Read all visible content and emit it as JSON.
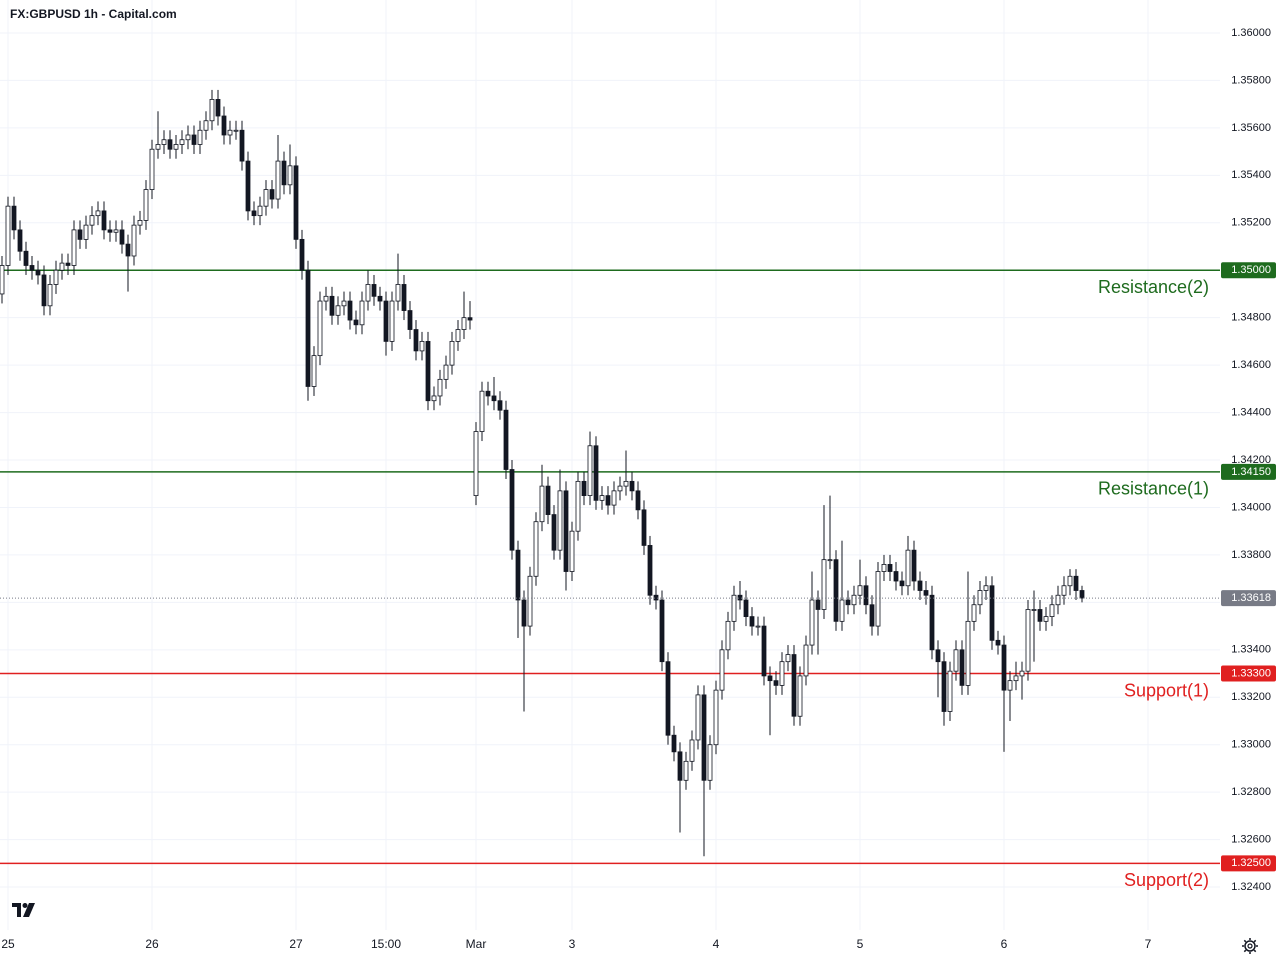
{
  "chart_data": {
    "type": "candlestick",
    "title": "FX:GBPUSD 1h - Capital.com",
    "up_color": "#ffffff",
    "down_color": "#131722",
    "outline_color": "#131722",
    "xlim": [
      -0.333,
      203
    ],
    "ylim": [
      1.32219,
      1.36139
    ],
    "xticks": [
      {
        "value": 1,
        "label": "25"
      },
      {
        "value": 25,
        "label": "26"
      },
      {
        "value": 49,
        "label": "27"
      },
      {
        "value": 64,
        "label": "15:00"
      },
      {
        "value": 79,
        "label": "Mar"
      },
      {
        "value": 95,
        "label": "3"
      },
      {
        "value": 119,
        "label": "4"
      },
      {
        "value": 143,
        "label": "5"
      },
      {
        "value": 167,
        "label": "6"
      },
      {
        "value": 191,
        "label": "7"
      }
    ],
    "yticks": [
      {
        "value": 1.36,
        "label": "1.36000"
      },
      {
        "value": 1.358,
        "label": "1.35800"
      },
      {
        "value": 1.356,
        "label": "1.35600"
      },
      {
        "value": 1.354,
        "label": "1.35400"
      },
      {
        "value": 1.352,
        "label": "1.35200"
      },
      {
        "value": 1.35,
        "label": "1.35000"
      },
      {
        "value": 1.348,
        "label": "1.34800"
      },
      {
        "value": 1.346,
        "label": "1.34600"
      },
      {
        "value": 1.344,
        "label": "1.34400"
      },
      {
        "value": 1.342,
        "label": "1.34200"
      },
      {
        "value": 1.34,
        "label": "1.34000"
      },
      {
        "value": 1.338,
        "label": "1.33800"
      },
      {
        "value": 1.336,
        "label": "1.33600"
      },
      {
        "value": 1.334,
        "label": "1.33400"
      },
      {
        "value": 1.332,
        "label": "1.33200"
      },
      {
        "value": 1.33,
        "label": "1.33000"
      },
      {
        "value": 1.328,
        "label": "1.32800"
      },
      {
        "value": 1.326,
        "label": "1.32600"
      },
      {
        "value": 1.324,
        "label": "1.32400"
      }
    ],
    "grid": true,
    "levels": [
      {
        "name": "Resistance(2)",
        "price": {
          "value": 1.35,
          "label": "1.35000"
        },
        "color": "#1e6b1e"
      },
      {
        "name": "Resistance(1)",
        "price": {
          "value": 1.3415,
          "label": "1.34150"
        },
        "color": "#1e6b1e"
      },
      {
        "name": "Support(1)",
        "price": {
          "value": 1.333,
          "label": "1.33300"
        },
        "color": "#e02020"
      },
      {
        "name": "Support(2)",
        "price": {
          "value": 1.325,
          "label": "1.32500"
        },
        "color": "#e02020"
      }
    ],
    "last_price_color": "#787b86",
    "ohlc": [
      [
        1.349,
        1.3506,
        1.3486,
        1.3502
      ],
      [
        1.3502,
        1.3531,
        1.3498,
        1.3527
      ],
      [
        1.3527,
        1.3531,
        1.3513,
        1.3517
      ],
      [
        1.3517,
        1.3521,
        1.3504,
        1.3508
      ],
      [
        1.3508,
        1.3512,
        1.3498,
        1.3502
      ],
      [
        1.3502,
        1.3506,
        1.3496,
        1.35
      ],
      [
        1.35,
        1.3504,
        1.3494,
        1.3498
      ],
      [
        1.3498,
        1.3502,
        1.3481,
        1.3485
      ],
      [
        1.3485,
        1.3498,
        1.3481,
        1.3494
      ],
      [
        1.3494,
        1.3504,
        1.349,
        1.35
      ],
      [
        1.35,
        1.3507,
        1.3496,
        1.3503
      ],
      [
        1.3503,
        1.3507,
        1.3498,
        1.3502
      ],
      [
        1.3502,
        1.3521,
        1.3498,
        1.3517
      ],
      [
        1.3517,
        1.3521,
        1.3509,
        1.3513
      ],
      [
        1.3513,
        1.3523,
        1.3509,
        1.3519
      ],
      [
        1.3519,
        1.3527,
        1.3515,
        1.3523
      ],
      [
        1.3523,
        1.3529,
        1.3519,
        1.3525
      ],
      [
        1.3525,
        1.3529,
        1.3513,
        1.3517
      ],
      [
        1.3517,
        1.3521,
        1.3512,
        1.3516
      ],
      [
        1.3516,
        1.3521,
        1.3512,
        1.3517
      ],
      [
        1.3517,
        1.3521,
        1.3507,
        1.3511
      ],
      [
        1.3511,
        1.3515,
        1.3491,
        1.3506
      ],
      [
        1.3506,
        1.3523,
        1.3502,
        1.3519
      ],
      [
        1.3519,
        1.3525,
        1.3515,
        1.3521
      ],
      [
        1.3521,
        1.3538,
        1.3517,
        1.3534
      ],
      [
        1.3534,
        1.3555,
        1.353,
        1.3551
      ],
      [
        1.3551,
        1.3567,
        1.3547,
        1.3553
      ],
      [
        1.3553,
        1.3559,
        1.3549,
        1.3555
      ],
      [
        1.3555,
        1.3559,
        1.3547,
        1.3551
      ],
      [
        1.3551,
        1.3557,
        1.3547,
        1.3553
      ],
      [
        1.3553,
        1.3559,
        1.3549,
        1.3555
      ],
      [
        1.3555,
        1.3561,
        1.3551,
        1.3557
      ],
      [
        1.3557,
        1.3561,
        1.3549,
        1.3553
      ],
      [
        1.3553,
        1.3563,
        1.3549,
        1.3559
      ],
      [
        1.3559,
        1.3567,
        1.3555,
        1.3563
      ],
      [
        1.3563,
        1.3576,
        1.3559,
        1.3572
      ],
      [
        1.3572,
        1.3576,
        1.3561,
        1.3565
      ],
      [
        1.3565,
        1.3569,
        1.3553,
        1.3557
      ],
      [
        1.3557,
        1.3563,
        1.3553,
        1.3559
      ],
      [
        1.3559,
        1.3563,
        1.3555,
        1.3559
      ],
      [
        1.3559,
        1.3563,
        1.3542,
        1.3546
      ],
      [
        1.3546,
        1.355,
        1.3521,
        1.3525
      ],
      [
        1.3525,
        1.3529,
        1.3519,
        1.3523
      ],
      [
        1.3523,
        1.3531,
        1.3519,
        1.3527
      ],
      [
        1.3527,
        1.3538,
        1.3523,
        1.3534
      ],
      [
        1.3534,
        1.3538,
        1.3526,
        1.353
      ],
      [
        1.353,
        1.3557,
        1.3526,
        1.3546
      ],
      [
        1.3546,
        1.355,
        1.3532,
        1.3536
      ],
      [
        1.3536,
        1.3553,
        1.3532,
        1.3544
      ],
      [
        1.3544,
        1.3548,
        1.3509,
        1.3513
      ],
      [
        1.3513,
        1.3517,
        1.3496,
        1.35
      ],
      [
        1.35,
        1.3504,
        1.3445,
        1.3451
      ],
      [
        1.3451,
        1.3468,
        1.3447,
        1.3464
      ],
      [
        1.3464,
        1.3491,
        1.346,
        1.3487
      ],
      [
        1.3487,
        1.3493,
        1.3483,
        1.3489
      ],
      [
        1.3489,
        1.3493,
        1.3477,
        1.3481
      ],
      [
        1.3481,
        1.3489,
        1.3477,
        1.3485
      ],
      [
        1.3485,
        1.3491,
        1.3481,
        1.3487
      ],
      [
        1.3487,
        1.3491,
        1.3475,
        1.3479
      ],
      [
        1.3479,
        1.3483,
        1.3473,
        1.3477
      ],
      [
        1.3477,
        1.3491,
        1.3473,
        1.3487
      ],
      [
        1.3487,
        1.35,
        1.3483,
        1.3494
      ],
      [
        1.3494,
        1.3498,
        1.3485,
        1.3489
      ],
      [
        1.3489,
        1.3493,
        1.3483,
        1.3487
      ],
      [
        1.3487,
        1.3491,
        1.3464,
        1.347
      ],
      [
        1.347,
        1.3491,
        1.3466,
        1.3487
      ],
      [
        1.3487,
        1.3507,
        1.3483,
        1.3494
      ],
      [
        1.3494,
        1.3498,
        1.3479,
        1.3483
      ],
      [
        1.3483,
        1.3487,
        1.3471,
        1.3475
      ],
      [
        1.3475,
        1.3479,
        1.3462,
        1.3466
      ],
      [
        1.3466,
        1.3474,
        1.3462,
        1.347
      ],
      [
        1.347,
        1.3474,
        1.3441,
        1.3445
      ],
      [
        1.3445,
        1.3451,
        1.3441,
        1.3447
      ],
      [
        1.3447,
        1.3458,
        1.3443,
        1.3454
      ],
      [
        1.3454,
        1.3464,
        1.345,
        1.346
      ],
      [
        1.346,
        1.3474,
        1.3456,
        1.347
      ],
      [
        1.347,
        1.3479,
        1.3466,
        1.3475
      ],
      [
        1.3475,
        1.3491,
        1.3471,
        1.348
      ],
      [
        1.348,
        1.3487,
        1.3475,
        1.3479
      ],
      [
        1.3405,
        1.3436,
        1.3401,
        1.3432
      ],
      [
        1.3432,
        1.3453,
        1.3428,
        1.3449
      ],
      [
        1.3449,
        1.3453,
        1.3443,
        1.3447
      ],
      [
        1.3447,
        1.3455,
        1.3441,
        1.3445
      ],
      [
        1.3445,
        1.3449,
        1.3437,
        1.3441
      ],
      [
        1.3441,
        1.3445,
        1.3412,
        1.3416
      ],
      [
        1.3416,
        1.342,
        1.3378,
        1.3382
      ],
      [
        1.3382,
        1.3386,
        1.3345,
        1.3361
      ],
      [
        1.3361,
        1.3365,
        1.3314,
        1.335
      ],
      [
        1.335,
        1.3375,
        1.3346,
        1.3371
      ],
      [
        1.3371,
        1.3398,
        1.3367,
        1.3394
      ],
      [
        1.3394,
        1.3418,
        1.339,
        1.3409
      ],
      [
        1.3409,
        1.3413,
        1.3393,
        1.3397
      ],
      [
        1.3397,
        1.3401,
        1.3378,
        1.3382
      ],
      [
        1.3382,
        1.3416,
        1.3378,
        1.3407
      ],
      [
        1.3407,
        1.3411,
        1.3365,
        1.3373
      ],
      [
        1.3373,
        1.3394,
        1.3369,
        1.339
      ],
      [
        1.339,
        1.3415,
        1.3386,
        1.3411
      ],
      [
        1.3411,
        1.3415,
        1.3401,
        1.3405
      ],
      [
        1.3405,
        1.3432,
        1.3401,
        1.3426
      ],
      [
        1.3426,
        1.343,
        1.3399,
        1.3403
      ],
      [
        1.3403,
        1.3409,
        1.3399,
        1.3405
      ],
      [
        1.3405,
        1.3409,
        1.3397,
        1.3401
      ],
      [
        1.3401,
        1.3411,
        1.3397,
        1.3407
      ],
      [
        1.3407,
        1.3413,
        1.3403,
        1.3409
      ],
      [
        1.3409,
        1.3424,
        1.3405,
        1.3411
      ],
      [
        1.3411,
        1.3415,
        1.3403,
        1.3407
      ],
      [
        1.3407,
        1.3411,
        1.3395,
        1.3399
      ],
      [
        1.3399,
        1.3403,
        1.338,
        1.3384
      ],
      [
        1.3384,
        1.3388,
        1.3359,
        1.3363
      ],
      [
        1.3363,
        1.3367,
        1.3357,
        1.3361
      ],
      [
        1.3361,
        1.3365,
        1.3331,
        1.3335
      ],
      [
        1.3335,
        1.3339,
        1.33,
        1.3304
      ],
      [
        1.3304,
        1.3308,
        1.3293,
        1.3297
      ],
      [
        1.3297,
        1.3301,
        1.3263,
        1.3285
      ],
      [
        1.3285,
        1.3297,
        1.3281,
        1.3293
      ],
      [
        1.3293,
        1.3306,
        1.3289,
        1.3302
      ],
      [
        1.3302,
        1.3325,
        1.3298,
        1.3321
      ],
      [
        1.3321,
        1.3325,
        1.3253,
        1.3285
      ],
      [
        1.3285,
        1.3304,
        1.3281,
        1.33
      ],
      [
        1.33,
        1.3327,
        1.3296,
        1.3323
      ],
      [
        1.3323,
        1.3344,
        1.3319,
        1.334
      ],
      [
        1.334,
        1.3356,
        1.3336,
        1.3352
      ],
      [
        1.3352,
        1.3367,
        1.3348,
        1.3363
      ],
      [
        1.3363,
        1.3369,
        1.3357,
        1.3361
      ],
      [
        1.3361,
        1.3365,
        1.335,
        1.3354
      ],
      [
        1.3354,
        1.3358,
        1.3346,
        1.335
      ],
      [
        1.335,
        1.3354,
        1.3346,
        1.335
      ],
      [
        1.335,
        1.3354,
        1.3325,
        1.3329
      ],
      [
        1.3329,
        1.3333,
        1.3304,
        1.3327
      ],
      [
        1.3327,
        1.3331,
        1.3321,
        1.3325
      ],
      [
        1.3325,
        1.3339,
        1.3321,
        1.3335
      ],
      [
        1.3335,
        1.3342,
        1.3331,
        1.3338
      ],
      [
        1.3338,
        1.3342,
        1.3308,
        1.3312
      ],
      [
        1.3312,
        1.3333,
        1.3308,
        1.3329
      ],
      [
        1.3329,
        1.3346,
        1.3325,
        1.3342
      ],
      [
        1.3342,
        1.3373,
        1.3338,
        1.3361
      ],
      [
        1.3361,
        1.3365,
        1.3338,
        1.3357
      ],
      [
        1.3357,
        1.3401,
        1.3353,
        1.3378
      ],
      [
        1.3378,
        1.3405,
        1.3374,
        1.3378
      ],
      [
        1.3378,
        1.3382,
        1.3348,
        1.3352
      ],
      [
        1.3352,
        1.3386,
        1.3348,
        1.3361
      ],
      [
        1.3361,
        1.3365,
        1.3355,
        1.3359
      ],
      [
        1.3359,
        1.3367,
        1.3355,
        1.3363
      ],
      [
        1.3363,
        1.3378,
        1.3359,
        1.3367
      ],
      [
        1.3367,
        1.3371,
        1.3355,
        1.3359
      ],
      [
        1.3359,
        1.3363,
        1.3346,
        1.335
      ],
      [
        1.335,
        1.3377,
        1.3346,
        1.3373
      ],
      [
        1.3373,
        1.338,
        1.3369,
        1.3376
      ],
      [
        1.3376,
        1.338,
        1.3369,
        1.3373
      ],
      [
        1.3373,
        1.3377,
        1.3365,
        1.3369
      ],
      [
        1.3369,
        1.3373,
        1.3363,
        1.3367
      ],
      [
        1.3367,
        1.3388,
        1.3363,
        1.3382
      ],
      [
        1.3382,
        1.3386,
        1.3365,
        1.3369
      ],
      [
        1.3369,
        1.3373,
        1.3361,
        1.3365
      ],
      [
        1.3365,
        1.3369,
        1.3359,
        1.3363
      ],
      [
        1.3363,
        1.3367,
        1.3336,
        1.334
      ],
      [
        1.334,
        1.3344,
        1.332,
        1.3335
      ],
      [
        1.3335,
        1.3339,
        1.3308,
        1.3314
      ],
      [
        1.3314,
        1.3335,
        1.331,
        1.3331
      ],
      [
        1.3331,
        1.3344,
        1.3327,
        1.334
      ],
      [
        1.334,
        1.3344,
        1.3321,
        1.3325
      ],
      [
        1.3325,
        1.3373,
        1.3321,
        1.3352
      ],
      [
        1.3352,
        1.3363,
        1.3348,
        1.3359
      ],
      [
        1.3359,
        1.3369,
        1.3355,
        1.3365
      ],
      [
        1.3365,
        1.3371,
        1.3361,
        1.3367
      ],
      [
        1.3367,
        1.3371,
        1.334,
        1.3344
      ],
      [
        1.3344,
        1.3348,
        1.3338,
        1.3342
      ],
      [
        1.3342,
        1.3346,
        1.3297,
        1.3323
      ],
      [
        1.3323,
        1.3331,
        1.331,
        1.3327
      ],
      [
        1.3327,
        1.3335,
        1.3323,
        1.3329
      ],
      [
        1.3329,
        1.3335,
        1.3319,
        1.3331
      ],
      [
        1.3331,
        1.3361,
        1.3327,
        1.3357
      ],
      [
        1.3357,
        1.3365,
        1.3335,
        1.3357
      ],
      [
        1.3357,
        1.3361,
        1.3348,
        1.3352
      ],
      [
        1.3352,
        1.3358,
        1.3348,
        1.3354
      ],
      [
        1.3354,
        1.3363,
        1.335,
        1.3359
      ],
      [
        1.3359,
        1.3367,
        1.3355,
        1.3363
      ],
      [
        1.3363,
        1.3371,
        1.3359,
        1.3367
      ],
      [
        1.3367,
        1.3374,
        1.3363,
        1.3371
      ],
      [
        1.3371,
        1.3374,
        1.3361,
        1.3365
      ],
      [
        1.3365,
        1.3367,
        1.336,
        1.33618
      ]
    ]
  }
}
